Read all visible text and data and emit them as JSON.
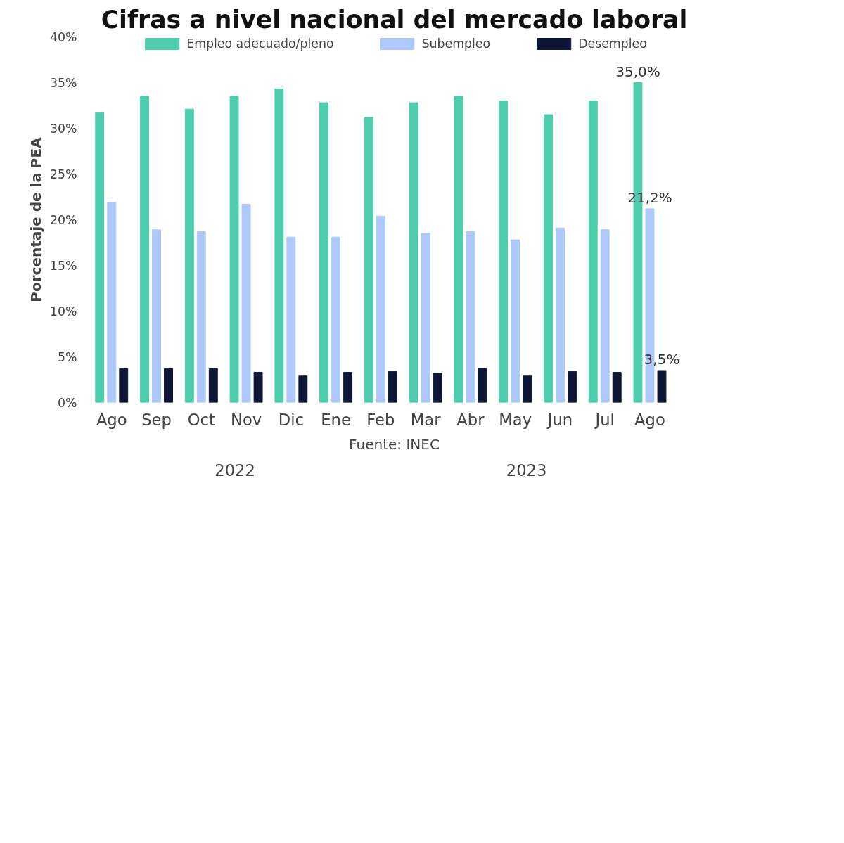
{
  "chart_data": {
    "type": "bar",
    "title": "Cifras a nivel nacional del mercado laboral",
    "ylabel": "Porcentaje de la PEA",
    "categories": [
      "Ago",
      "Sep",
      "Oct",
      "Nov",
      "Dic",
      "Ene",
      "Feb",
      "Mar",
      "Abr",
      "May",
      "Jun",
      "Jul",
      "Ago"
    ],
    "series": [
      {
        "name": "Empleo adecuado/pleno",
        "color": "#4ecdac",
        "values": [
          31.7,
          33.5,
          32.1,
          33.5,
          34.3,
          32.8,
          31.2,
          32.8,
          33.5,
          33.0,
          31.5,
          33.0,
          35.0
        ],
        "value_labels": [
          null,
          null,
          null,
          null,
          null,
          null,
          null,
          null,
          null,
          null,
          null,
          null,
          "35,0%"
        ]
      },
      {
        "name": "Subempleo",
        "color": "#adc9f9",
        "values": [
          21.9,
          18.9,
          18.7,
          21.7,
          18.1,
          18.1,
          20.4,
          18.5,
          18.7,
          17.8,
          19.1,
          18.9,
          21.2
        ],
        "value_labels": [
          null,
          null,
          null,
          null,
          null,
          null,
          null,
          null,
          null,
          null,
          null,
          null,
          "21,2%"
        ]
      },
      {
        "name": "Desempleo",
        "color": "#0d1637",
        "values": [
          3.7,
          3.7,
          3.7,
          3.3,
          2.9,
          3.3,
          3.4,
          3.2,
          3.7,
          2.9,
          3.4,
          3.3,
          3.5
        ],
        "value_labels": [
          null,
          null,
          null,
          null,
          null,
          null,
          null,
          null,
          null,
          null,
          null,
          null,
          "3,5%"
        ]
      }
    ],
    "ylim": [
      0,
      40
    ],
    "yticks": [
      {
        "value": 0,
        "label": "0%"
      },
      {
        "value": 5,
        "label": "5%"
      },
      {
        "value": 10,
        "label": "10%"
      },
      {
        "value": 15,
        "label": "15%"
      },
      {
        "value": 20,
        "label": "20%"
      },
      {
        "value": 25,
        "label": "25%"
      },
      {
        "value": 30,
        "label": "30%"
      },
      {
        "value": 35,
        "label": "35%"
      },
      {
        "value": 40,
        "label": "40%"
      }
    ],
    "grid": false,
    "legend": "top",
    "annotations": [
      "2022",
      "2023",
      "Fuente: INEC"
    ]
  }
}
